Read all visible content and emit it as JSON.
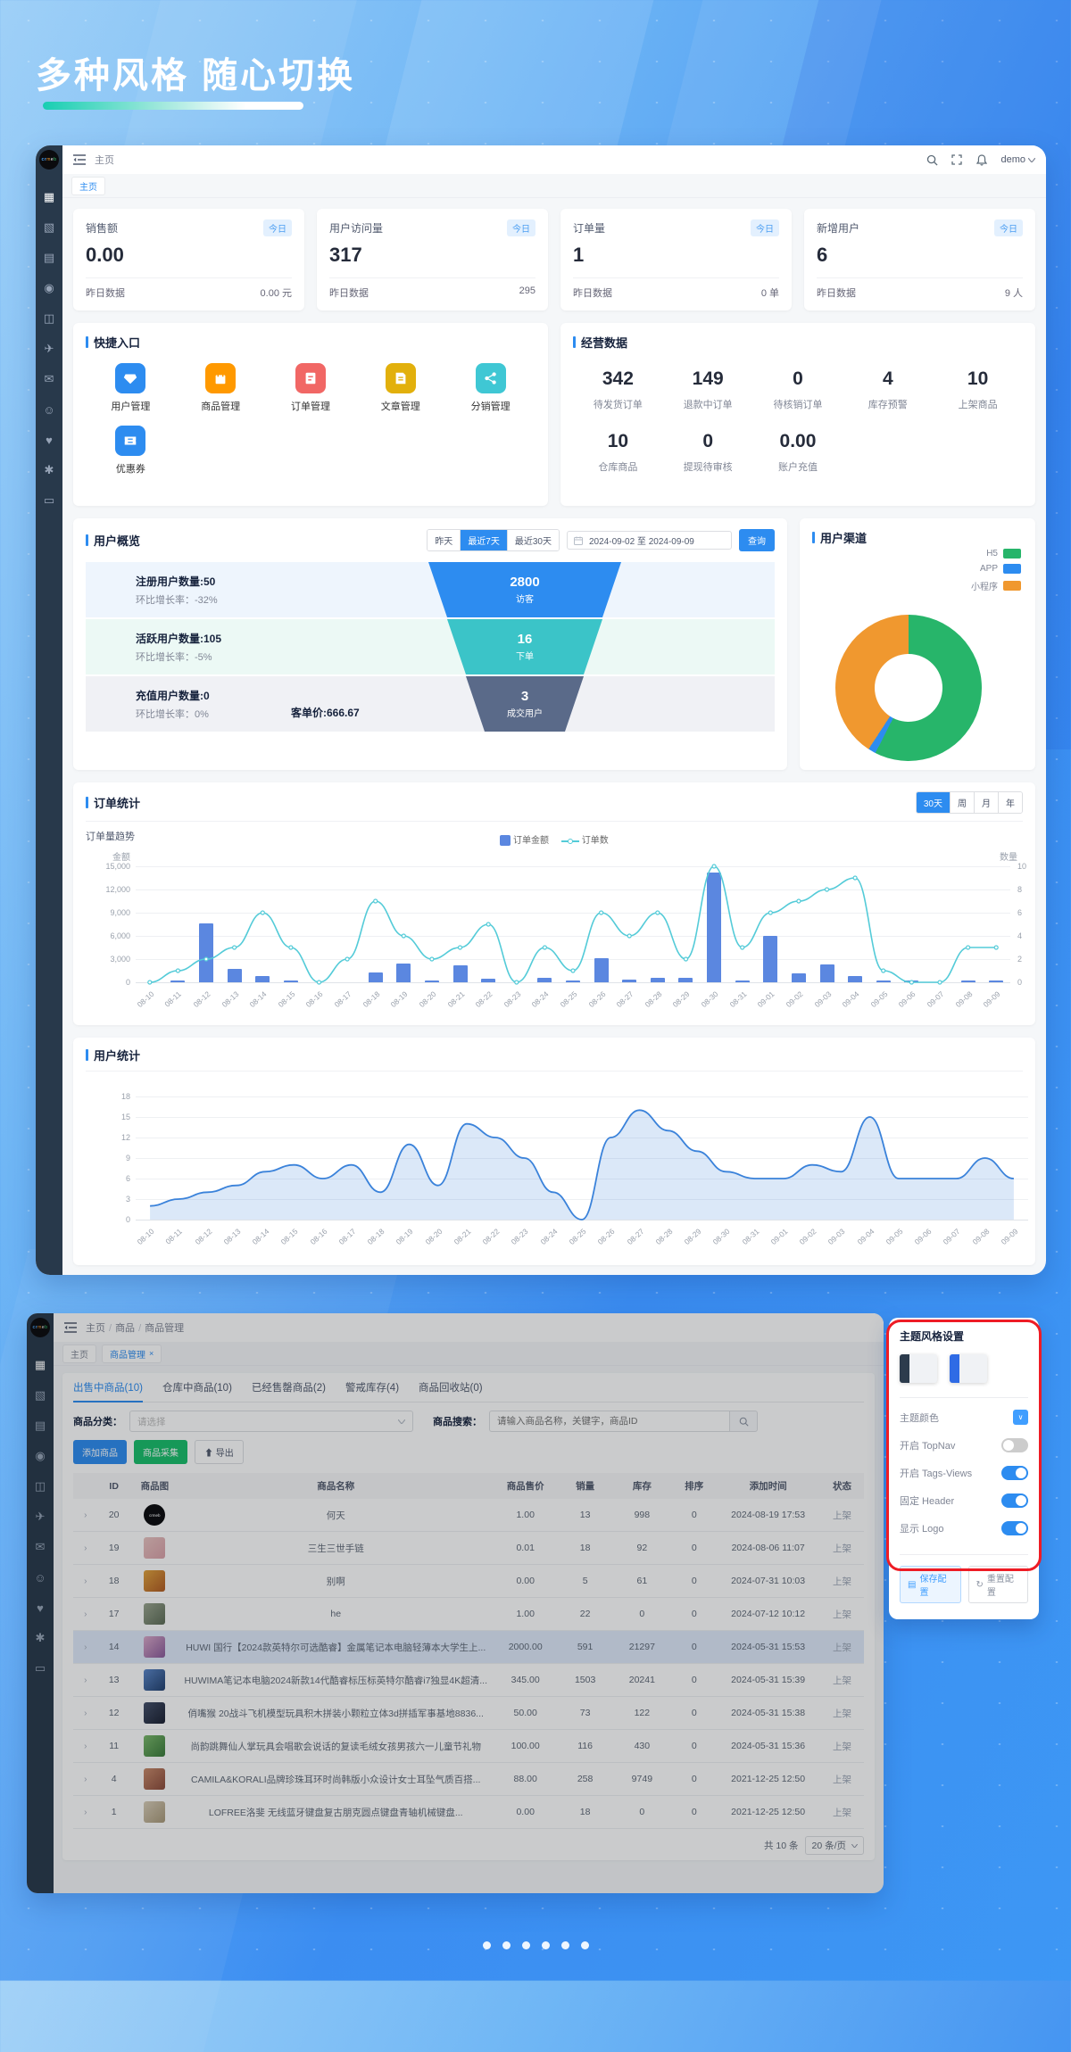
{
  "page": {
    "title": "多种风格 随心切换"
  },
  "dashboard": {
    "logo_text": "crmeb",
    "sidebar_icons": [
      "dashboard",
      "products",
      "orders",
      "users",
      "statistics",
      "promotion",
      "messages",
      "members",
      "marketing",
      "settings",
      "devices"
    ],
    "header": {
      "breadcrumb": "主页",
      "username": "demo"
    },
    "tag": "主页",
    "stat_cards": [
      {
        "label": "销售额",
        "badge": "今日",
        "value": "0.00",
        "foot_label": "昨日数据",
        "foot_value": "0.00 元"
      },
      {
        "label": "用户访问量",
        "badge": "今日",
        "value": "317",
        "foot_label": "昨日数据",
        "foot_value": "295"
      },
      {
        "label": "订单量",
        "badge": "今日",
        "value": "1",
        "foot_label": "昨日数据",
        "foot_value": "0 单"
      },
      {
        "label": "新增用户",
        "badge": "今日",
        "value": "6",
        "foot_label": "昨日数据",
        "foot_value": "9 人"
      }
    ],
    "quick_entry": {
      "title": "快捷入口",
      "items": [
        {
          "label": "用户管理",
          "icon": "vip-diamond-icon",
          "color": "#2d8cf0"
        },
        {
          "label": "商品管理",
          "icon": "shopping-bag-icon",
          "color": "#ff9900"
        },
        {
          "label": "订单管理",
          "icon": "order-clipboard-icon",
          "color": "#f16765"
        },
        {
          "label": "文章管理",
          "icon": "article-doc-icon",
          "color": "#e2b00c"
        },
        {
          "label": "分销管理",
          "icon": "share-nodes-icon",
          "color": "#3fc7d4"
        },
        {
          "label": "优惠券",
          "icon": "coupon-ticket-icon",
          "color": "#2d8cf0"
        }
      ]
    },
    "business": {
      "title": "经营数据",
      "items": [
        {
          "value": "342",
          "label": "待发货订单"
        },
        {
          "value": "149",
          "label": "退款中订单"
        },
        {
          "value": "0",
          "label": "待核销订单"
        },
        {
          "value": "4",
          "label": "库存预警"
        },
        {
          "value": "10",
          "label": "上架商品"
        },
        {
          "value": "10",
          "label": "仓库商品"
        },
        {
          "value": "0",
          "label": "提现待审核"
        },
        {
          "value": "0.00",
          "label": "账户充值"
        }
      ]
    },
    "user_overview": {
      "title": "用户概览",
      "ranges": [
        "昨天",
        "最近7天",
        "最近30天"
      ],
      "active_range": 1,
      "date_range": "2024-09-02 至 2024-09-09",
      "query": "查询",
      "rows": [
        {
          "title": "注册用户数量:50",
          "sub": "环比增长率：-32%",
          "extra": "",
          "value": "2800",
          "label": "访客",
          "color": "#2d8cf0",
          "bg": "#eef5fd",
          "topw": 216,
          "botw": 174
        },
        {
          "title": "活跃用户数量:105",
          "sub": "环比增长率：-5%",
          "extra": "",
          "value": "16",
          "label": "下单",
          "color": "#3bc4c8",
          "bg": "#ecf9f5",
          "topw": 174,
          "botw": 132
        },
        {
          "title": "充值用户数量:0",
          "sub": "环比增长率：0%",
          "extra": "客单价:666.67",
          "value": "3",
          "label": "成交用户",
          "color": "#5a6a89",
          "bg": "#f0f1f5",
          "topw": 132,
          "botw": 90
        }
      ]
    },
    "user_channel": {
      "title": "用户渠道"
    },
    "order_section": {
      "title": "订单统计",
      "ranges": [
        "30天",
        "周",
        "月",
        "年"
      ],
      "active_range": 0,
      "sub": "订单量趋势",
      "legend_bar": "订单金额",
      "legend_line": "订单数",
      "left_axis": "金额",
      "right_axis": "数量"
    },
    "user_section": {
      "title": "用户统计"
    }
  },
  "chart_data": [
    {
      "type": "pie",
      "title": "用户渠道",
      "legend_position": "top-right",
      "series": [
        {
          "name": "H5",
          "value": 57.5,
          "color": "#27b56a"
        },
        {
          "name": "APP",
          "value": 1.7,
          "color": "#2d8cf0"
        },
        {
          "name": "小程序",
          "value": 40.8,
          "color": "#f0982f"
        }
      ],
      "unit": "percent-of-donut"
    },
    {
      "type": "bar",
      "title": "订单量趋势",
      "categories": [
        "08-10",
        "08-11",
        "08-12",
        "08-13",
        "08-14",
        "08-15",
        "08-16",
        "08-17",
        "08-18",
        "08-19",
        "08-20",
        "08-21",
        "08-22",
        "08-23",
        "08-24",
        "08-25",
        "08-26",
        "08-27",
        "08-28",
        "08-29",
        "08-30",
        "08-31",
        "09-01",
        "09-02",
        "09-03",
        "09-04",
        "09-05",
        "09-06",
        "09-07",
        "09-08",
        "09-09"
      ],
      "series": [
        {
          "name": "订单金额",
          "type": "bar",
          "color": "#5b87e0",
          "values": [
            0,
            200,
            7700,
            1800,
            900,
            200,
            0,
            0,
            1300,
            2500,
            300,
            2200,
            450,
            0,
            650,
            200,
            3200,
            400,
            650,
            600,
            14200,
            150,
            6000,
            1200,
            2400,
            900,
            300,
            50,
            0,
            300,
            200
          ]
        },
        {
          "name": "订单数",
          "type": "line",
          "color": "#54cbd8",
          "values": [
            0,
            1,
            2,
            3,
            6,
            3,
            0,
            2,
            7,
            4,
            2,
            3,
            5,
            0,
            3,
            1,
            6,
            4,
            6,
            2,
            10,
            3,
            6,
            7,
            8,
            9,
            1,
            0,
            0,
            3,
            3
          ]
        }
      ],
      "left_axis": {
        "label": "金额",
        "max": 15000,
        "step": 3000
      },
      "right_axis": {
        "label": "数量",
        "max": 10,
        "step": 2
      },
      "grid": true
    },
    {
      "type": "area",
      "title": "用户统计",
      "categories": [
        "08-10",
        "08-11",
        "08-12",
        "08-13",
        "08-14",
        "08-15",
        "08-16",
        "08-17",
        "08-18",
        "08-19",
        "08-20",
        "08-21",
        "08-22",
        "08-23",
        "08-24",
        "08-25",
        "08-26",
        "08-27",
        "08-28",
        "08-29",
        "08-30",
        "08-31",
        "09-01",
        "09-02",
        "09-03",
        "09-04",
        "09-05",
        "09-06",
        "09-07",
        "09-08",
        "09-09"
      ],
      "series": [
        {
          "name": "用户数",
          "color": "#3a82da",
          "values": [
            2,
            3,
            4,
            5,
            7,
            8,
            6,
            8,
            4,
            11,
            5,
            14,
            12,
            9,
            4,
            0,
            12,
            16,
            13,
            10,
            7,
            6,
            6,
            8,
            7,
            15,
            6,
            6,
            6,
            9,
            6
          ]
        }
      ],
      "ylim": [
        0,
        18
      ],
      "y_step": 3,
      "grid": true
    }
  ],
  "products": {
    "breadcrumb": [
      "主页",
      "商品",
      "商品管理"
    ],
    "tags": [
      {
        "label": "主页",
        "closable": false,
        "active": false
      },
      {
        "label": "商品管理",
        "closable": true,
        "active": true
      }
    ],
    "tabs": [
      "出售中商品(10)",
      "仓库中商品(10)",
      "已经售罄商品(2)",
      "警戒库存(4)",
      "商品回收站(0)"
    ],
    "active_tab": 0,
    "filter": {
      "category_label": "商品分类：",
      "category_placeholder": "请选择",
      "search_label": "商品搜索：",
      "search_placeholder": "请输入商品名称，关键字，商品ID"
    },
    "buttons": {
      "add": "添加商品",
      "collect": "商品采集",
      "export": "导出"
    },
    "table": {
      "headers": [
        "",
        "ID",
        "商品图",
        "商品名称",
        "商品售价",
        "销量",
        "库存",
        "排序",
        "添加时间",
        "状态"
      ],
      "rows": [
        {
          "id": "20",
          "thumb": "logo",
          "name": "何天",
          "price": "1.00",
          "sales": "13",
          "stock": "998",
          "sort": "0",
          "time": "2024-08-19 17:53",
          "status": "上架",
          "highlight": false
        },
        {
          "id": "19",
          "thumb": "#e8c3c0|#d9a0a8",
          "name": "三生三世手链",
          "price": "0.01",
          "sales": "18",
          "stock": "92",
          "sort": "0",
          "time": "2024-08-06 11:07",
          "status": "上架",
          "highlight": false
        },
        {
          "id": "18",
          "thumb": "#e0a23c|#b05a22",
          "name": "别啊",
          "price": "0.00",
          "sales": "5",
          "stock": "61",
          "sort": "0",
          "time": "2024-07-31 10:03",
          "status": "上架",
          "highlight": false
        },
        {
          "id": "17",
          "thumb": "#9aa58f|#5c6b55",
          "name": "he",
          "price": "1.00",
          "sales": "22",
          "stock": "0",
          "sort": "0",
          "time": "2024-07-12 10:12",
          "status": "上架",
          "highlight": false
        },
        {
          "id": "14",
          "thumb": "#d8a8c8|#8a5a9a",
          "name": "HUWI 国行【2024款英特尔可选酷睿】金属笔记本电脑轻薄本大学生上...",
          "price": "2000.00",
          "sales": "591",
          "stock": "21297",
          "sort": "0",
          "time": "2024-05-31 15:53",
          "status": "上架",
          "highlight": true
        },
        {
          "id": "13",
          "thumb": "#5a86c8 |#22406e",
          "name": "HUWIMA笔记本电脑2024新款14代酷睿标压标英特尔酷睿i7独显4K超清...",
          "price": "345.00",
          "sales": "1503",
          "stock": "20241",
          "sort": "0",
          "time": "2024-05-31 15:39",
          "status": "上架",
          "highlight": false
        },
        {
          "id": "12",
          "thumb": "#44506a|#1a2030",
          "name": "俏嘴猴 20战斗飞机模型玩具积木拼装小颗粒立体3d拼插军事基地8836...",
          "price": "50.00",
          "sales": "73",
          "stock": "122",
          "sort": "0",
          "time": "2024-05-31 15:38",
          "status": "上架",
          "highlight": false
        },
        {
          "id": "11",
          "thumb": "#7ab86a|#3a7a3a",
          "name": "尚韵跳舞仙人掌玩具会唱歌会说话的复读毛绒女孩男孩六一儿童节礼物",
          "price": "100.00",
          "sales": "116",
          "stock": "430",
          "sort": "0",
          "time": "2024-05-31 15:36",
          "status": "上架",
          "highlight": false
        },
        {
          "id": "4",
          "thumb": "#c88a6a|#8a4a3a",
          "name": "CAMILA&KORALI品牌珍珠耳环时尚韩版小众设计女士耳坠气质百搭...",
          "price": "88.00",
          "sales": "258",
          "stock": "9749",
          "sort": "0",
          "time": "2021-12-25 12:50",
          "status": "上架",
          "highlight": false
        },
        {
          "id": "1",
          "thumb": "#d8cdb8|#a89878",
          "name": "LOFREE洛斐 无线蓝牙键盘复古朋克圆点键盘青轴机械键盘...",
          "price": "0.00",
          "sales": "18",
          "stock": "0",
          "sort": "0",
          "time": "2021-12-25 12:50",
          "status": "上架",
          "highlight": false
        }
      ]
    },
    "pagination": {
      "total": "共 10 条",
      "per_page": "20 条/页"
    }
  },
  "theme_panel": {
    "title": "主题风格设置",
    "thumbnails": [
      {
        "name": "dark-sidebar-theme",
        "bar": "#2c3b4d"
      },
      {
        "name": "blue-sidebar-theme",
        "bar": "#2f6be5"
      }
    ],
    "rows": [
      {
        "label": "主题颜色",
        "control": "color"
      },
      {
        "label": "开启 TopNav",
        "control": "switch",
        "on": false
      },
      {
        "label": "开启 Tags-Views",
        "control": "switch",
        "on": true
      },
      {
        "label": "固定 Header",
        "control": "switch",
        "on": true
      },
      {
        "label": "显示 Logo",
        "control": "switch",
        "on": true
      }
    ],
    "save": "保存配置",
    "reset": "重置配置"
  },
  "carousel": {
    "dots": 6
  }
}
